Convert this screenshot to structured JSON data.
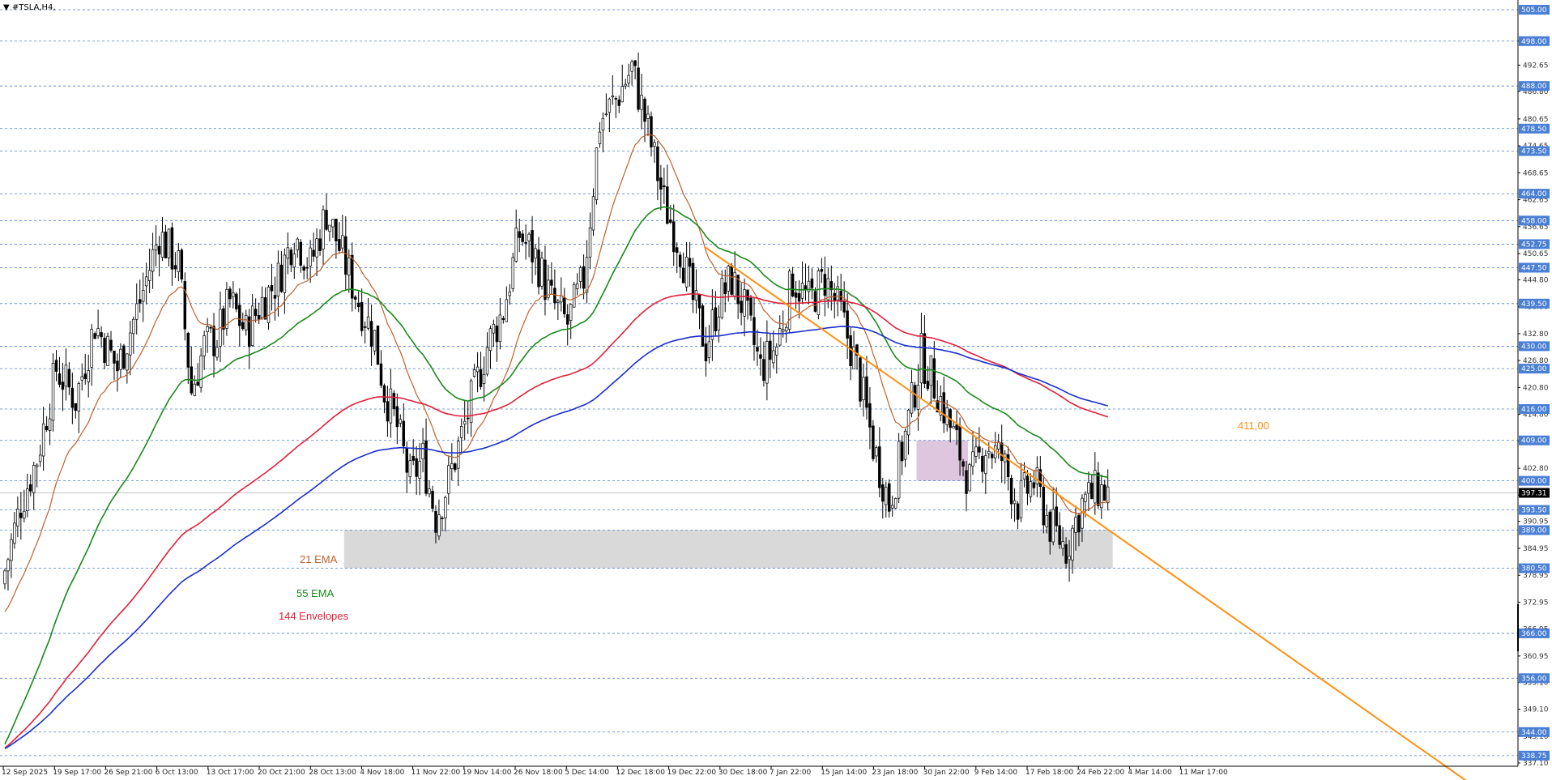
{
  "window": {
    "symbol_title": "▼ #TSLA,H4,"
  },
  "chart_data": {
    "type": "candlestick",
    "symbol": "#TSLA",
    "timeframe": "H4",
    "ylim": [
      337.1,
      505.0
    ],
    "grid": false,
    "price_ticks": [
      "498.00",
      "492.65",
      "486.80",
      "480.65",
      "474.65",
      "468.65",
      "462.65",
      "456.65",
      "450.65",
      "444.80",
      "438.80",
      "432.80",
      "426.80",
      "420.80",
      "414.80",
      "408.80",
      "402.80",
      "396.80",
      "390.95",
      "384.95",
      "378.95",
      "372.95",
      "366.95",
      "360.95",
      "355.10",
      "349.10",
      "343.10",
      "337.10"
    ],
    "price_tick_values": [
      498.0,
      492.65,
      486.8,
      480.65,
      474.65,
      468.65,
      462.65,
      456.65,
      450.65,
      444.8,
      438.8,
      432.8,
      426.8,
      420.8,
      414.8,
      408.8,
      402.8,
      396.8,
      390.95,
      384.95,
      378.95,
      372.95,
      366.95,
      360.95,
      355.1,
      349.1,
      343.1,
      337.1
    ],
    "levels": [
      505.0,
      498.0,
      488.0,
      478.5,
      473.5,
      464.0,
      458.0,
      452.75,
      447.5,
      439.5,
      430.0,
      425.0,
      416.0,
      409.0,
      400.0,
      393.5,
      389.0,
      380.5,
      366.0,
      356.0,
      344.0,
      338.75
    ],
    "level_labels": [
      "505.00",
      "498.00",
      "488.00",
      "478.50",
      "473.50",
      "464.00",
      "458.00",
      "452.75",
      "447.50",
      "439.50",
      "430.00",
      "425.00",
      "416.00",
      "409.00",
      "400.00",
      "393.50",
      "389.00",
      "380.50",
      "366.00",
      "356.00",
      "344.00",
      "338.75"
    ],
    "current_price": 397.31,
    "current_price_label": "397.31",
    "time_labels": [
      "12 Sep 2025",
      "19 Sep 17:00",
      "26 Sep 21:00",
      "6 Oct 13:00",
      "13 Oct 17:00",
      "20 Oct 21:00",
      "28 Oct 13:00",
      "4 Nov 18:00",
      "11 Nov 22:00",
      "19 Nov 14:00",
      "26 Nov 18:00",
      "5 Dec 14:00",
      "12 Dec 18:00",
      "19 Dec 22:00",
      "30 Dec 18:00",
      "7 Jan 22:00",
      "15 Jan 14:00",
      "23 Jan 18:00",
      "30 Jan 22:00",
      "9 Feb 14:00",
      "17 Feb 18:00",
      "24 Feb 22:00",
      "4 Mar 14:00",
      "11 Mar 17:00"
    ],
    "price_anchors": [
      [
        0,
        380
      ],
      [
        5,
        395
      ],
      [
        10,
        405
      ],
      [
        16,
        425
      ],
      [
        22,
        418
      ],
      [
        28,
        435
      ],
      [
        35,
        425
      ],
      [
        42,
        440
      ],
      [
        48,
        455
      ],
      [
        54,
        448
      ],
      [
        58,
        420
      ],
      [
        62,
        430
      ],
      [
        66,
        432
      ],
      [
        70,
        440
      ],
      [
        75,
        433
      ],
      [
        80,
        440
      ],
      [
        85,
        445
      ],
      [
        90,
        455
      ],
      [
        95,
        448
      ],
      [
        100,
        460
      ],
      [
        105,
        450
      ],
      [
        110,
        440
      ],
      [
        115,
        432
      ],
      [
        118,
        420
      ],
      [
        122,
        412
      ],
      [
        126,
        400
      ],
      [
        130,
        405
      ],
      [
        134,
        392
      ],
      [
        138,
        400
      ],
      [
        142,
        410
      ],
      [
        146,
        420
      ],
      [
        150,
        430
      ],
      [
        155,
        438
      ],
      [
        160,
        455
      ],
      [
        165,
        450
      ],
      [
        170,
        440
      ],
      [
        175,
        435
      ],
      [
        180,
        445
      ],
      [
        185,
        480
      ],
      [
        190,
        485
      ],
      [
        195,
        492
      ],
      [
        200,
        478
      ],
      [
        205,
        462
      ],
      [
        210,
        452
      ],
      [
        214,
        440
      ],
      [
        218,
        430
      ],
      [
        222,
        440
      ],
      [
        226,
        445
      ],
      [
        230,
        438
      ],
      [
        235,
        425
      ],
      [
        240,
        430
      ],
      [
        245,
        445
      ],
      [
        250,
        440
      ],
      [
        255,
        445
      ],
      [
        260,
        437
      ],
      [
        265,
        425
      ],
      [
        270,
        408
      ],
      [
        275,
        395
      ],
      [
        280,
        410
      ],
      [
        285,
        428
      ],
      [
        290,
        420
      ],
      [
        295,
        410
      ],
      [
        300,
        400
      ],
      [
        305,
        408
      ],
      [
        310,
        405
      ],
      [
        315,
        395
      ],
      [
        320,
        400
      ],
      [
        325,
        390
      ],
      [
        330,
        385
      ],
      [
        335,
        395
      ],
      [
        340,
        398
      ],
      [
        343,
        397.31
      ]
    ],
    "indicators": [
      {
        "name": "21 EMA",
        "period": 21,
        "color": "#c0602a"
      },
      {
        "name": "55 EMA",
        "period": 55,
        "color": "#1a8a1a"
      },
      {
        "name": "144 Envelopes",
        "period": 144,
        "color": "#e0203a"
      },
      {
        "name": "",
        "period": 200,
        "color": "#1a2ecc"
      }
    ],
    "trendline": {
      "label": "411,00",
      "color": "#ff9010",
      "from": {
        "bar": 218,
        "price": 452.2
      },
      "to": {
        "bar": 300,
        "price": 411.0
      }
    },
    "zones": [
      {
        "type": "support",
        "from_bar": 106,
        "to_bar": 345,
        "low": 380.5,
        "high": 389.0,
        "color": "#d9d9d9"
      },
      {
        "type": "range",
        "from_bar": 284,
        "to_bar": 300,
        "low": 400.0,
        "high": 409.0,
        "color": "#d8bcd8"
      }
    ],
    "legend": [
      "21 EMA",
      "55 EMA",
      "144 Envelopes"
    ]
  }
}
